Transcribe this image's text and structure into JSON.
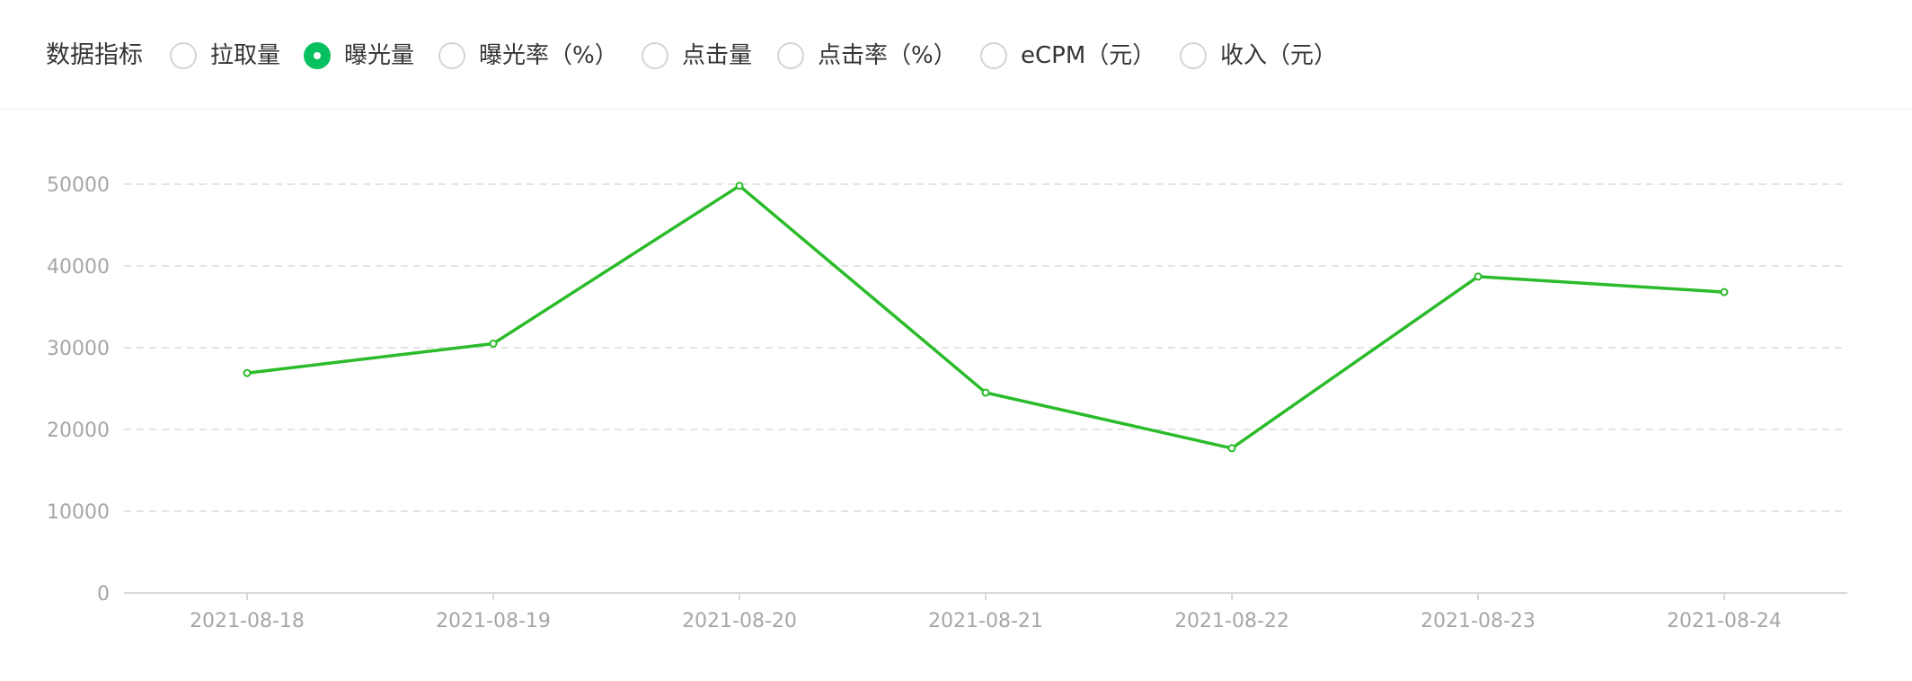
{
  "metric_selector": {
    "title": "数据指标",
    "options": [
      {
        "label": "拉取量",
        "selected": false
      },
      {
        "label": "曝光量",
        "selected": true
      },
      {
        "label": "曝光率（%）",
        "selected": false
      },
      {
        "label": "点击量",
        "selected": false
      },
      {
        "label": "点击率（%）",
        "selected": false
      },
      {
        "label": "eCPM（元）",
        "selected": false
      },
      {
        "label": "收入（元）",
        "selected": false
      }
    ]
  },
  "colors": {
    "accent": "#07c160",
    "line": "#2bbb2b",
    "grid": "#dcdcdc",
    "axis_text": "#a6a6a6"
  },
  "chart_data": {
    "type": "line",
    "title": "",
    "xlabel": "",
    "ylabel": "",
    "categories": [
      "2021-08-18",
      "2021-08-19",
      "2021-08-20",
      "2021-08-21",
      "2021-08-22",
      "2021-08-23",
      "2021-08-24"
    ],
    "series": [
      {
        "values": [
          26900,
          30500,
          49800,
          24500,
          17700,
          38700,
          36800
        ]
      }
    ],
    "ylim": [
      0,
      50000
    ],
    "yticks": [
      0,
      10000,
      20000,
      30000,
      40000,
      50000
    ],
    "grid": true,
    "legend": "none"
  }
}
